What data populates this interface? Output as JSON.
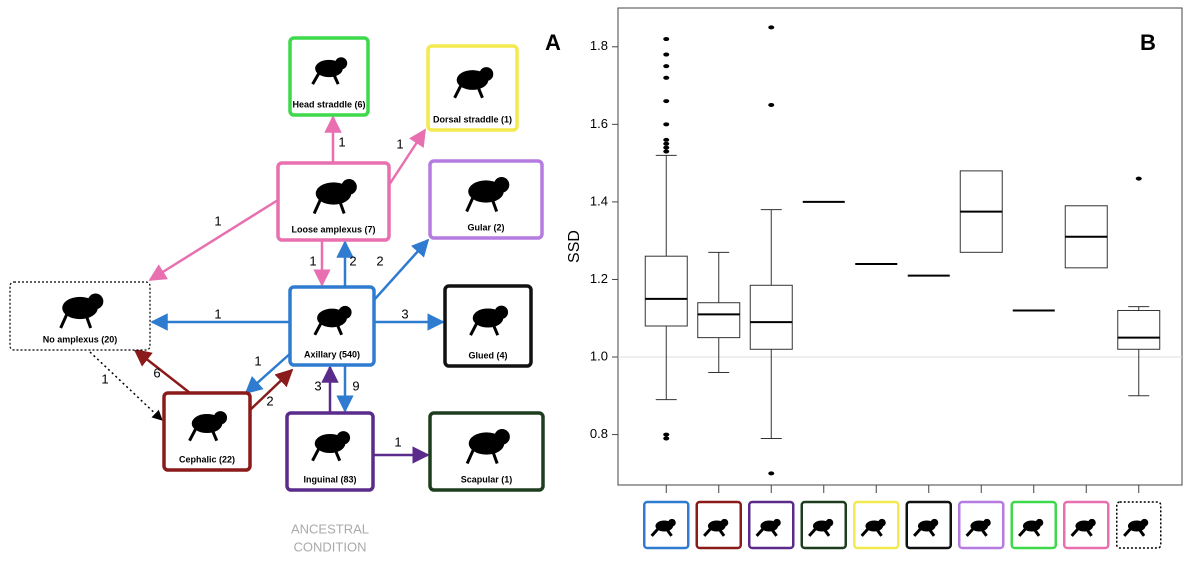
{
  "diagram": {
    "panel_label": "A",
    "nodes": [
      {
        "label": "Head straddle (6)",
        "color": "#3dd94a"
      },
      {
        "label": "Dorsal straddle (1)",
        "color": "#f2ea4e"
      },
      {
        "label": "Loose amplexus (7)",
        "color": "#e86fb0"
      },
      {
        "label": "Gular (2)",
        "color": "#b57be0"
      },
      {
        "label": "No amplexus (20)",
        "color": "#000000"
      },
      {
        "label": "Axillary (540)",
        "color": "#2e7bd0"
      },
      {
        "label": "Glued (4)",
        "color": "#111111"
      },
      {
        "label": "Cephalic (22)",
        "color": "#8b1a1a"
      },
      {
        "label": "Inguinal (83)",
        "color": "#5a2b8a"
      },
      {
        "label": "Scapular (1)",
        "color": "#1e3d1e"
      }
    ],
    "edges": [
      {
        "label": 1,
        "color": "#e86fb0"
      },
      {
        "label": 1,
        "color": "#e86fb0"
      },
      {
        "label": 1,
        "color": "#e86fb0"
      },
      {
        "label": 1,
        "color": "#e86fb0"
      },
      {
        "label": 2,
        "color": "#2e7bd0"
      },
      {
        "label": 2,
        "color": "#2e7bd0"
      },
      {
        "label": 1,
        "color": "#2e7bd0"
      },
      {
        "label": 3,
        "color": "#2e7bd0"
      },
      {
        "label": 1,
        "color": "#2e7bd0"
      },
      {
        "label": 2,
        "color": "#8b1a1a"
      },
      {
        "label": 6,
        "color": "#8b1a1a"
      },
      {
        "label": 1,
        "color": "#000000"
      },
      {
        "label": 9,
        "color": "#2e7bd0"
      },
      {
        "label": 3,
        "color": "#5a2b8a"
      },
      {
        "label": 1,
        "color": "#5a2b8a"
      }
    ],
    "ancestral_note": [
      "ANCESTRAL",
      "CONDITION"
    ]
  },
  "chart_data": {
    "type": "box",
    "panel_label": "B",
    "y_label": "SSD",
    "categories": [
      null,
      null,
      null,
      null,
      null,
      null,
      null,
      null,
      null,
      null
    ],
    "colors": [
      "#2e7bd0",
      "#8b1a1a",
      "#5a2b8a",
      "#1e3d1e",
      "#f2ea4e",
      "#111111",
      "#b57be0",
      "#3dd94a",
      "#e86fb0",
      "#000000"
    ],
    "low": [
      0.89,
      0.96,
      0.79,
      null,
      null,
      null,
      null,
      null,
      null,
      0.9
    ],
    "q1": [
      1.08,
      1.05,
      1.02,
      null,
      null,
      null,
      1.27,
      null,
      1.23,
      1.02
    ],
    "median": [
      1.15,
      1.11,
      1.09,
      1.4,
      1.24,
      1.21,
      1.375,
      1.12,
      1.31,
      1.05
    ],
    "q3": [
      1.26,
      1.14,
      1.185,
      null,
      null,
      null,
      1.48,
      null,
      1.39,
      1.12
    ],
    "high": [
      1.52,
      1.27,
      1.38,
      null,
      null,
      null,
      null,
      null,
      null,
      1.13
    ],
    "outliers": [
      [
        0.79,
        0.8,
        1.53,
        1.54,
        1.55,
        1.56,
        1.6,
        1.66,
        1.72,
        1.75,
        1.78,
        1.82
      ],
      [],
      [
        0.7,
        1.65,
        1.85
      ],
      [],
      [],
      [],
      [],
      [],
      [],
      [
        1.46
      ]
    ],
    "reference_line": 1,
    "ylim": [
      0.67,
      1.9
    ],
    "yticks": [
      0.8,
      {
        "value": 1,
        "label": "1.0"
      },
      1.2,
      1.4,
      1.6,
      1.8
    ]
  }
}
